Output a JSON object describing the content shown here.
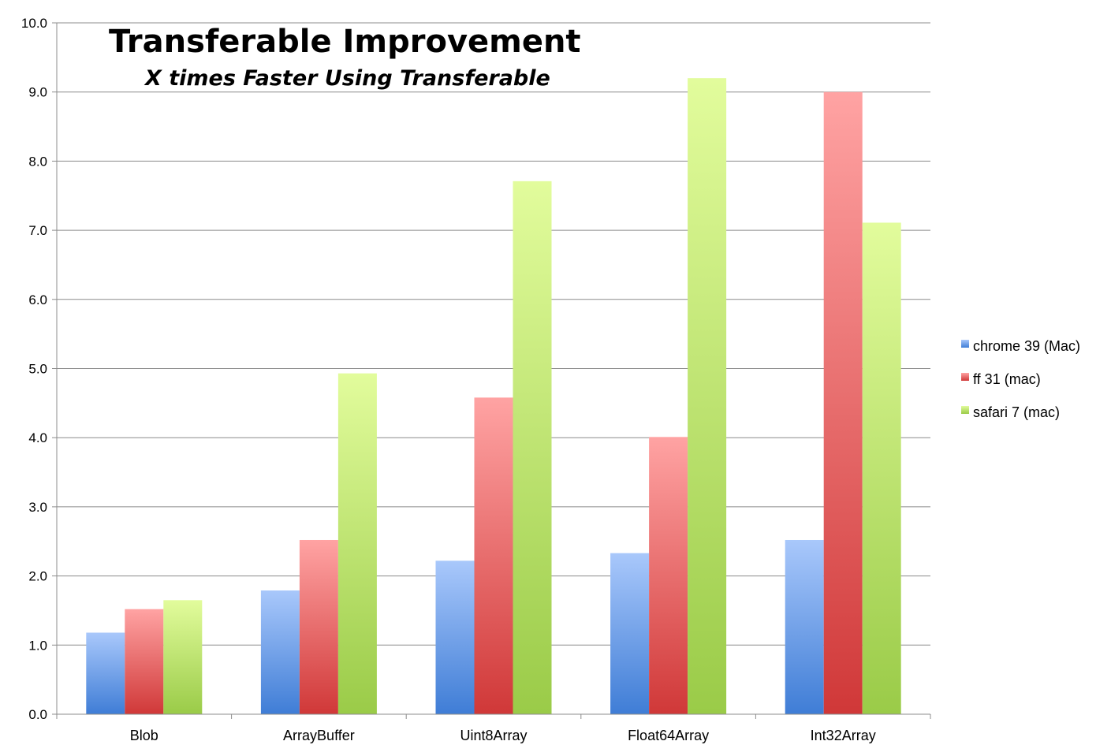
{
  "chart_data": {
    "type": "bar",
    "title": "Transferable Improvement",
    "subtitle": "X times Faster Using Transferable",
    "xlabel": "",
    "ylabel": "",
    "categories": [
      "Blob",
      "ArrayBuffer",
      "Uint8Array",
      "Float64Array",
      "Int32Array"
    ],
    "series": [
      {
        "name": "chrome 39 (Mac)",
        "values": [
          1.18,
          1.79,
          2.22,
          2.33,
          2.52
        ],
        "color": "#6a9bea"
      },
      {
        "name": "ff 31 (mac)",
        "values": [
          1.52,
          2.52,
          4.58,
          4.01,
          9.0
        ],
        "color": "#e06060"
      },
      {
        "name": "safari 7 (mac)",
        "values": [
          1.65,
          4.93,
          7.71,
          9.2,
          7.11
        ],
        "color": "#b8e07a"
      }
    ],
    "ylim": [
      0,
      10
    ],
    "yticks": [
      "0.0",
      "1.0",
      "2.0",
      "3.0",
      "4.0",
      "5.0",
      "6.0",
      "7.0",
      "8.0",
      "9.0",
      "10.0"
    ],
    "grid": true,
    "legend_position": "right"
  }
}
